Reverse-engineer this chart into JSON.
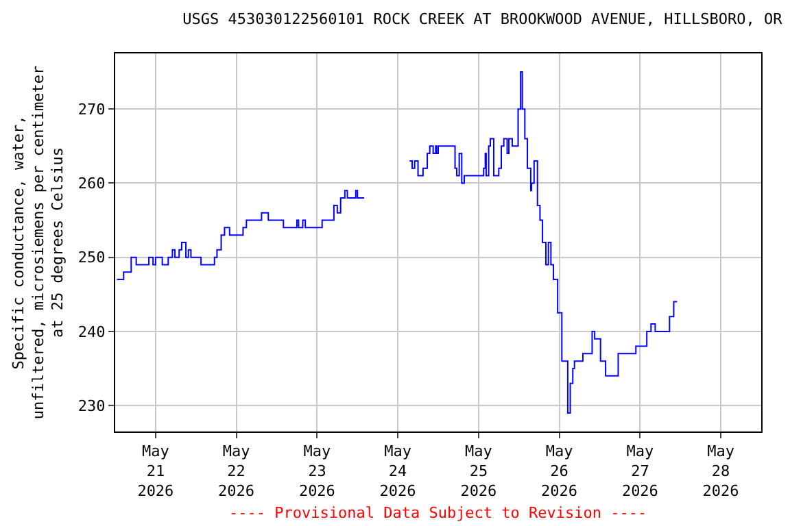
{
  "chart_data": {
    "type": "step",
    "title": "USGS 453030122560101 ROCK CREEK AT BROOKWOOD AVENUE, HILLSBORO, OR",
    "ylabel": "Specific conductance, water,\nunfiltered, microsiemens per centimeter\nat 25 degrees Celsius",
    "annotations": [
      "---- Provisional Data Subject to Revision ----"
    ],
    "x": [
      "2026-05-20T12:30",
      "2026-05-20T14:30",
      "2026-05-20T16:45",
      "2026-05-20T18:15",
      "2026-05-20T22:00",
      "2026-05-20T23:15",
      "2026-05-21T00:00",
      "2026-05-21T02:00",
      "2026-05-21T03:45",
      "2026-05-21T05:00",
      "2026-05-21T05:45",
      "2026-05-21T07:00",
      "2026-05-21T07:45",
      "2026-05-21T09:00",
      "2026-05-21T09:45",
      "2026-05-21T10:30",
      "2026-05-21T13:30",
      "2026-05-21T16:45",
      "2026-05-21T17:30",
      "2026-05-21T18:15",
      "2026-05-21T19:30",
      "2026-05-21T20:30",
      "2026-05-21T22:00",
      "2026-05-22T00:30",
      "2026-05-22T02:00",
      "2026-05-22T03:00",
      "2026-05-22T07:00",
      "2026-05-22T07:30",
      "2026-05-22T09:30",
      "2026-05-22T13:00",
      "2026-05-22T14:00",
      "2026-05-22T14:45",
      "2026-05-22T18:00",
      "2026-05-22T18:30",
      "2026-05-22T19:45",
      "2026-05-22T20:30",
      "2026-05-23T00:30",
      "2026-05-23T01:30",
      "2026-05-23T03:30",
      "2026-05-23T05:00",
      "2026-05-23T06:00",
      "2026-05-23T07:00",
      "2026-05-23T08:15",
      "2026-05-23T09:00",
      "2026-05-23T11:15",
      "2026-05-23T11:30",
      "2026-05-23T12:00",
      "2026-05-23T14:00",
      "2026-05-23T20:00",
      "2026-05-24T03:30",
      "2026-05-24T04:15",
      "2026-05-24T05:00",
      "2026-05-24T06:00",
      "2026-05-24T07:30",
      "2026-05-24T08:45",
      "2026-05-24T09:30",
      "2026-05-24T10:30",
      "2026-05-24T11:15",
      "2026-05-24T11:30",
      "2026-05-24T12:00",
      "2026-05-24T15:45",
      "2026-05-24T17:00",
      "2026-05-24T17:30",
      "2026-05-24T18:15",
      "2026-05-24T19:00",
      "2026-05-24T19:45",
      "2026-05-24T23:45",
      "2026-05-25T01:30",
      "2026-05-25T02:00",
      "2026-05-25T02:15",
      "2026-05-25T03:00",
      "2026-05-25T03:30",
      "2026-05-25T04:30",
      "2026-05-25T06:00",
      "2026-05-25T06:45",
      "2026-05-25T07:30",
      "2026-05-25T08:30",
      "2026-05-25T09:00",
      "2026-05-25T10:00",
      "2026-05-25T11:00",
      "2026-05-25T11:45",
      "2026-05-25T12:30",
      "2026-05-25T13:00",
      "2026-05-25T13:45",
      "2026-05-25T14:30",
      "2026-05-25T15:30",
      "2026-05-25T15:45",
      "2026-05-25T16:30",
      "2026-05-25T17:30",
      "2026-05-25T18:15",
      "2026-05-25T19:00",
      "2026-05-25T20:00",
      "2026-05-25T20:45",
      "2026-05-25T21:30",
      "2026-05-25T22:15",
      "2026-05-25T23:30",
      "2026-05-26T00:45",
      "2026-05-26T02:30",
      "2026-05-26T03:15",
      "2026-05-26T04:00",
      "2026-05-26T04:30",
      "2026-05-26T06:30",
      "2026-05-26T07:00",
      "2026-05-26T08:00",
      "2026-05-26T09:45",
      "2026-05-26T10:30",
      "2026-05-26T12:15",
      "2026-05-26T13:45",
      "2026-05-26T16:00",
      "2026-05-26T17:30",
      "2026-05-26T22:30",
      "2026-05-26T22:45",
      "2026-05-27T00:30",
      "2026-05-27T02:00",
      "2026-05-27T03:15",
      "2026-05-27T04:30",
      "2026-05-27T07:00",
      "2026-05-27T08:45",
      "2026-05-27T10:00",
      "2026-05-27T11:00"
    ],
    "series": [
      {
        "color": "#0000ff",
        "values": [
          247,
          248,
          250,
          249,
          250,
          249,
          250,
          249,
          250,
          251,
          250,
          251,
          252,
          250,
          251,
          250,
          249,
          249,
          250,
          251,
          253,
          254,
          253,
          253,
          254,
          255,
          255,
          256,
          255,
          255,
          254,
          254,
          255,
          254,
          255,
          254,
          254,
          255,
          255,
          257,
          256,
          258,
          259,
          258,
          258,
          259,
          258,
          258,
          null,
          263,
          262,
          263,
          261,
          262,
          264,
          265,
          264,
          265,
          264,
          265,
          265,
          262,
          261,
          264,
          260,
          261,
          261,
          262,
          264,
          261,
          265,
          266,
          261,
          262,
          265,
          266,
          264,
          266,
          265,
          265,
          270,
          275,
          270,
          266,
          262,
          259,
          260,
          263,
          257,
          255,
          252,
          249,
          252,
          249,
          247,
          242.5,
          236,
          229,
          233,
          235,
          236,
          236,
          237,
          237,
          240,
          239,
          236,
          234,
          234,
          237,
          237,
          238,
          238,
          240,
          241,
          240,
          240,
          242,
          244,
          244
        ]
      }
    ],
    "xlim": [
      "2026-05-20T12:00",
      "2026-05-28T12:00"
    ],
    "xticks": [
      {
        "value": "2026-05-21",
        "label": "May\n21\n2026"
      },
      {
        "value": "2026-05-22",
        "label": "May\n22\n2026"
      },
      {
        "value": "2026-05-23",
        "label": "May\n23\n2026"
      },
      {
        "value": "2026-05-24",
        "label": "May\n24\n2026"
      },
      {
        "value": "2026-05-25",
        "label": "May\n25\n2026"
      },
      {
        "value": "2026-05-26",
        "label": "May\n26\n2026"
      },
      {
        "value": "2026-05-27",
        "label": "May\n27\n2026"
      },
      {
        "value": "2026-05-28",
        "label": "May\n28\n2026"
      }
    ],
    "ylim": [
      226.5,
      277.5
    ],
    "yticks": [
      230,
      240,
      250,
      260,
      270
    ],
    "grid": true
  }
}
